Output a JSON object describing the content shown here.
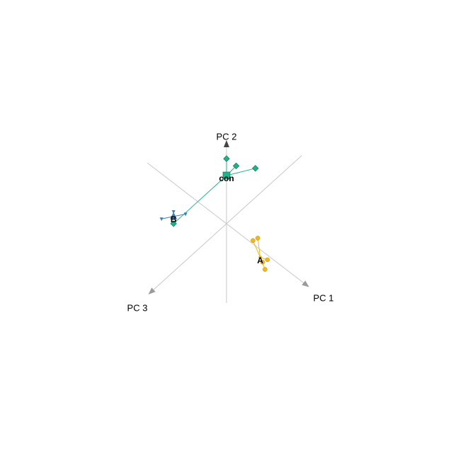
{
  "chart_data": {
    "type": "scatter",
    "title": "",
    "projection": "3d",
    "axes": [
      {
        "name": "PC 1"
      },
      {
        "name": "PC 2"
      },
      {
        "name": "PC 3"
      }
    ],
    "grid": false,
    "legend": "none",
    "groups": [
      {
        "name": "con",
        "color": "#1fb38a",
        "marker": "cube",
        "centroid": [
          0.0,
          1.0,
          0.0
        ],
        "points": [
          [
            0.0,
            1.35,
            0.0
          ],
          [
            0.2,
            1.2,
            0.0
          ],
          [
            0.6,
            1.15,
            0.0
          ],
          [
            -1.1,
            0.0,
            0.0
          ]
        ]
      },
      {
        "name": "B",
        "color": "#3d7fb0",
        "marker": "cone",
        "centroid": [
          -1.1,
          0.15,
          0.0
        ],
        "points": [
          [
            -1.1,
            0.25,
            0.0
          ],
          [
            -1.35,
            0.1,
            0.0
          ],
          [
            -0.85,
            0.2,
            0.0
          ]
        ]
      },
      {
        "name": "A",
        "color": "#f0b81c",
        "marker": "sphere",
        "centroid": [
          0.7,
          -0.7,
          0.0
        ],
        "points": [
          [
            0.65,
            -0.3,
            0.0
          ],
          [
            0.55,
            -0.35,
            0.0
          ],
          [
            0.85,
            -0.75,
            0.0
          ],
          [
            0.75,
            -0.8,
            0.0
          ],
          [
            0.8,
            -0.95,
            0.0
          ]
        ]
      }
    ]
  }
}
